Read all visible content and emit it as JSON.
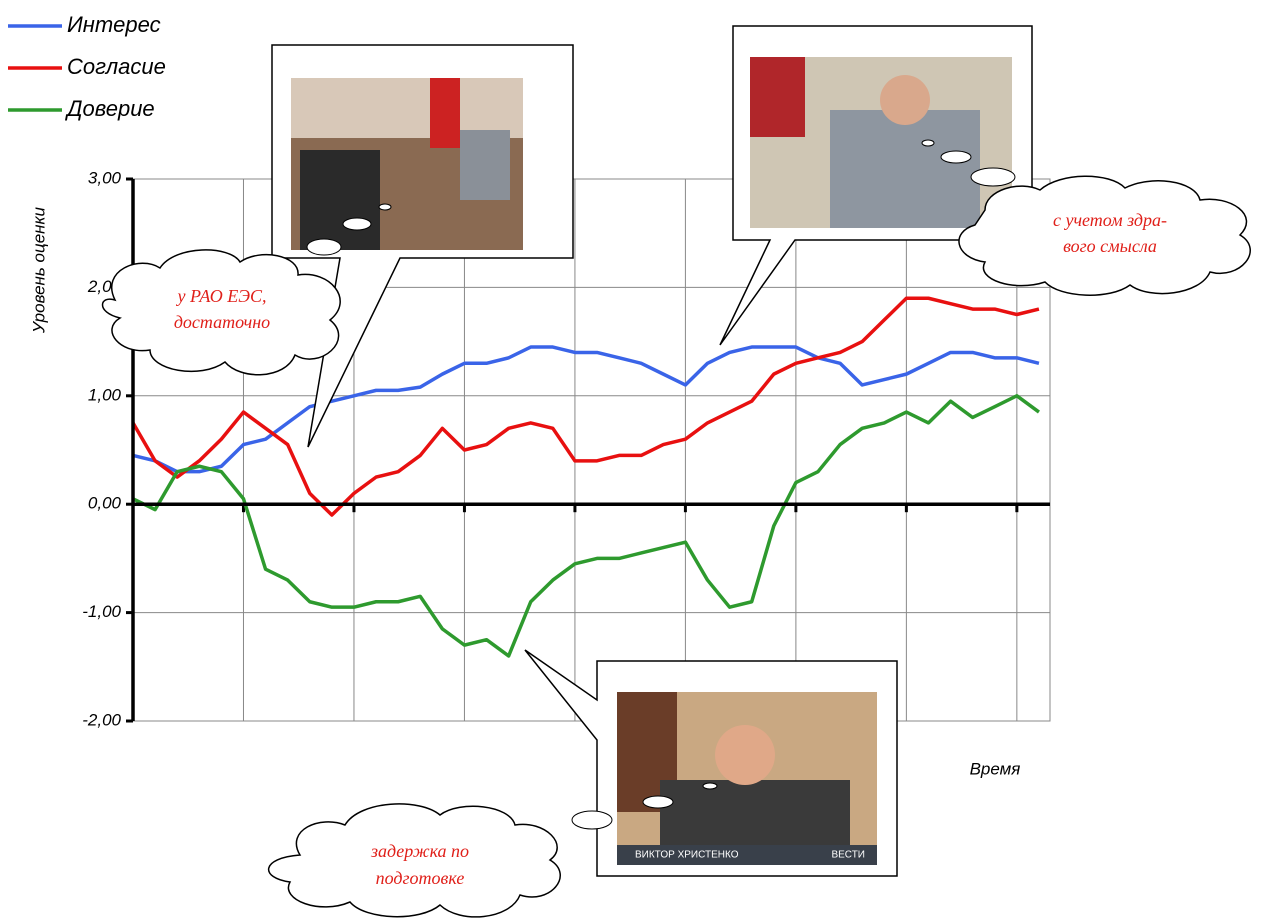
{
  "chart_data": {
    "type": "line",
    "y_label": "Уровень оценки",
    "x_label": "Время",
    "x": [
      0,
      2,
      4,
      6,
      8,
      10,
      12,
      14,
      16,
      18,
      20,
      22,
      24,
      26,
      28,
      30,
      32,
      34,
      36,
      38,
      40,
      42,
      44,
      46,
      48,
      50,
      52,
      54,
      56,
      58,
      60,
      62,
      64,
      66,
      68,
      70,
      72,
      74,
      76,
      78,
      80,
      82
    ],
    "xlim": [
      0,
      83
    ],
    "xticks": [
      0,
      10,
      20,
      30,
      40,
      50,
      60,
      70,
      80
    ],
    "ylim": [
      -2,
      3
    ],
    "yticks": [
      {
        "value": 3,
        "label": "3,00"
      },
      {
        "value": 2,
        "label": "2,00"
      },
      {
        "value": 1,
        "label": "1,00"
      },
      {
        "value": 0,
        "label": "0,00"
      },
      {
        "value": -1,
        "label": "-1,00"
      },
      {
        "value": -2,
        "label": "-2,00"
      }
    ],
    "grid": true,
    "legend": "top-left",
    "series": [
      {
        "name": "Интерес",
        "color": "#3a64e8",
        "values": [
          0.45,
          0.4,
          0.3,
          0.3,
          0.35,
          0.55,
          0.6,
          0.75,
          0.9,
          0.95,
          1.0,
          1.05,
          1.05,
          1.08,
          1.2,
          1.3,
          1.3,
          1.35,
          1.45,
          1.45,
          1.4,
          1.4,
          1.35,
          1.3,
          1.2,
          1.1,
          1.3,
          1.4,
          1.45,
          1.45,
          1.45,
          1.35,
          1.3,
          1.1,
          1.15,
          1.2,
          1.3,
          1.4,
          1.4,
          1.35,
          1.35,
          1.3
        ]
      },
      {
        "name": "Согласие",
        "color": "#e81010",
        "values": [
          0.75,
          0.4,
          0.25,
          0.4,
          0.6,
          0.85,
          0.7,
          0.55,
          0.1,
          -0.1,
          0.1,
          0.25,
          0.3,
          0.45,
          0.7,
          0.5,
          0.55,
          0.7,
          0.75,
          0.7,
          0.4,
          0.4,
          0.45,
          0.45,
          0.55,
          0.6,
          0.75,
          0.85,
          0.95,
          1.2,
          1.3,
          1.35,
          1.4,
          1.5,
          1.7,
          1.9,
          1.9,
          1.85,
          1.8,
          1.8,
          1.75,
          1.8
        ]
      },
      {
        "name": "Доверие",
        "color": "#2e9a2e",
        "values": [
          0.05,
          -0.05,
          0.3,
          0.35,
          0.3,
          0.05,
          -0.6,
          -0.7,
          -0.9,
          -0.95,
          -0.95,
          -0.9,
          -0.9,
          -0.85,
          -1.15,
          -1.3,
          -1.25,
          -1.4,
          -0.9,
          -0.7,
          -0.55,
          -0.5,
          -0.5,
          -0.45,
          -0.4,
          -0.35,
          -0.7,
          -0.95,
          -0.9,
          -0.2,
          0.2,
          0.3,
          0.55,
          0.7,
          0.75,
          0.85,
          0.75,
          0.95,
          0.8,
          0.9,
          1.0,
          0.85
        ]
      }
    ],
    "annotations": [
      {
        "lines": [
          "у РАО ЕЭС,",
          "достаточно"
        ]
      },
      {
        "lines": [
          "с учетом здра-",
          "вого смысла"
        ]
      },
      {
        "lines": [
          "задержка по",
          "подготовке"
        ]
      }
    ],
    "photo_caption": {
      "name": "ВИКТОР ХРИСТЕНКО",
      "channel": "ВЕСТИ"
    }
  }
}
